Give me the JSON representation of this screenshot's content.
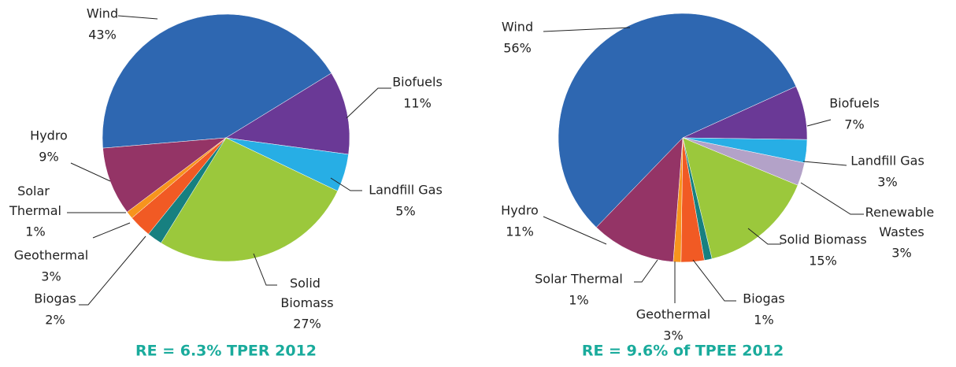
{
  "chart_data": [
    {
      "type": "pie",
      "title": "RE = 6.3% TPER 2012",
      "categories": [
        "Wind",
        "Biofuels",
        "Landfill Gas",
        "Solid Biomass",
        "Biogas",
        "Geothermal",
        "Solar Thermal",
        "Hydro"
      ],
      "values": [
        43,
        11,
        5,
        27,
        2,
        3,
        1,
        9
      ],
      "value_labels": [
        "43%",
        "11%",
        "5%",
        "27%",
        "2%",
        "3%",
        "1%",
        "9%"
      ],
      "colors": [
        "#2e67b1",
        "#6a3996",
        "#27aee5",
        "#9bc83c",
        "#178080",
        "#f15a24",
        "#f7941d",
        "#943466"
      ]
    },
    {
      "type": "pie",
      "title": "RE = 9.6% of TPEE 2012",
      "categories": [
        "Wind",
        "Biofuels",
        "Landfill Gas",
        "Renewable Wastes",
        "Solid Biomass",
        "Biogas",
        "Geothermal",
        "Solar Thermal",
        "Hydro"
      ],
      "values": [
        56,
        7,
        3,
        3,
        15,
        1,
        3,
        1,
        11
      ],
      "value_labels": [
        "56%",
        "7%",
        "3%",
        "3%",
        "15%",
        "1%",
        "3%",
        "1%",
        "11%"
      ],
      "colors": [
        "#2e67b1",
        "#6a3996",
        "#27aee5",
        "#b3a2c8",
        "#9bc83c",
        "#178080",
        "#f15a24",
        "#f7941d",
        "#943466"
      ]
    }
  ]
}
